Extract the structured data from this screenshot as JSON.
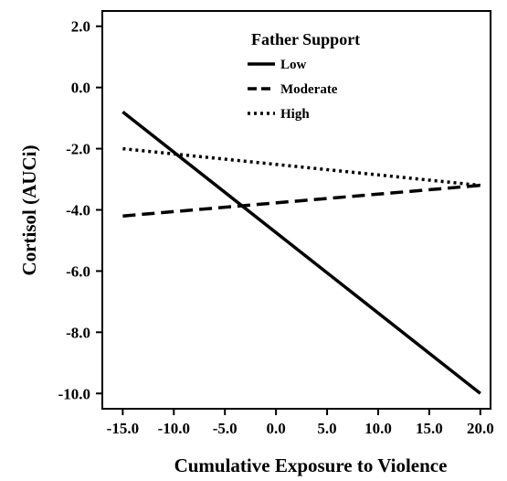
{
  "chart_data": {
    "type": "line",
    "title": "",
    "xlabel": "Cumulative Exposure to Violence",
    "ylabel": "Cortisol (AUCi)",
    "xlim": [
      -17.0,
      21.0
    ],
    "ylim": [
      -10.5,
      2.5
    ],
    "x_ticks": [
      "-15.0",
      "-10.0",
      "-5.0",
      "0.0",
      "5.0",
      "10.0",
      "15.0",
      "20.0"
    ],
    "x_tick_values": [
      -15,
      -10,
      -5,
      0,
      5,
      10,
      15,
      20
    ],
    "y_ticks": [
      "2.0",
      "0.0",
      "-2.0",
      "-4.0",
      "-6.0",
      "-8.0",
      "-10.0"
    ],
    "y_tick_values": [
      2,
      0,
      -2,
      -4,
      -6,
      -8,
      -10
    ],
    "grid": false,
    "legend_title": "Father Support",
    "legend_position": "top-right",
    "series": [
      {
        "name": "Low",
        "style": "solid",
        "x": [
          -15,
          20
        ],
        "y": [
          -0.8,
          -10.0
        ]
      },
      {
        "name": "Moderate",
        "style": "dashed",
        "x": [
          -15,
          20
        ],
        "y": [
          -4.2,
          -3.2
        ]
      },
      {
        "name": "High",
        "style": "dotted",
        "x": [
          -15,
          20
        ],
        "y": [
          -2.0,
          -3.2
        ]
      }
    ],
    "line_color": "#000000"
  }
}
